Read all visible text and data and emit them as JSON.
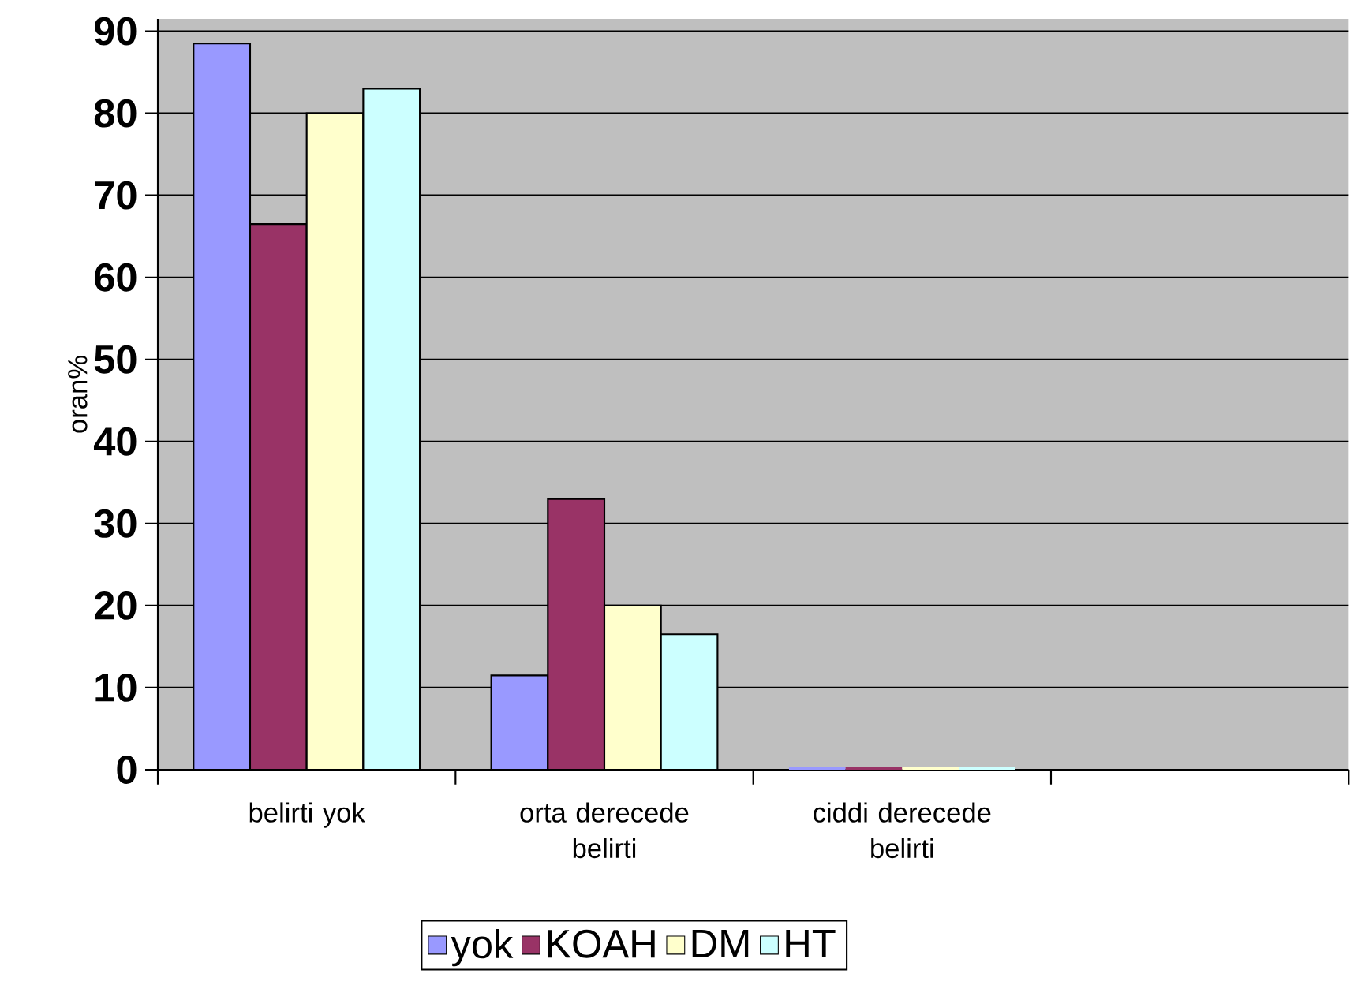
{
  "chart_data": {
    "type": "bar",
    "ylabel": "oran%",
    "categories": [
      "belirti yok",
      "orta derecede belirti",
      "ciddi derecede belirti",
      null
    ],
    "series": [
      {
        "name": "yok",
        "color": "#9999ff",
        "values": [
          88.5,
          11.5,
          0,
          null
        ]
      },
      {
        "name": "KOAH",
        "color": "#993366",
        "values": [
          66.5,
          33,
          0,
          null
        ]
      },
      {
        "name": "DM",
        "color": "#ffffcc",
        "values": [
          80,
          20,
          0,
          null
        ]
      },
      {
        "name": "HT",
        "color": "#ccffff",
        "values": [
          83,
          16.5,
          0,
          null
        ]
      }
    ],
    "ylim": [
      0,
      91.5
    ],
    "yticks": [
      0,
      10,
      20,
      30,
      40,
      50,
      60,
      70,
      80,
      90
    ],
    "grid": "y",
    "legend": "bottom"
  }
}
